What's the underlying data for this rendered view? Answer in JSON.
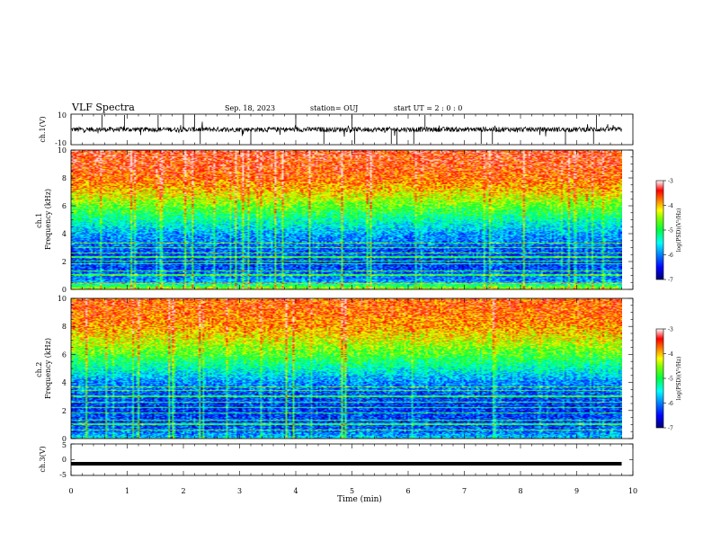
{
  "header": {
    "title": "VLF Spectra",
    "date": "Sep. 18, 2023",
    "station": "station= OUJ",
    "start_ut": "start  UT =   2 : 0  : 0"
  },
  "chart_data": [
    {
      "type": "line",
      "title": "VLF Spectra",
      "ylabel": "ch.1(V)",
      "ylim": [
        -10,
        10
      ],
      "yticks": [
        10,
        -10
      ],
      "x": [
        0,
        9.8
      ],
      "series_description": "broadband noise waveform near 0 V with sporadic spikes",
      "spike_times_min": [
        0.55,
        0.95,
        1.55,
        2.0,
        2.2,
        2.3,
        3.2,
        4.0,
        4.5,
        5.0,
        5.05,
        5.7,
        5.8,
        6.1,
        6.3,
        7.3,
        7.5,
        8.8,
        9.3,
        9.35
      ]
    },
    {
      "type": "heatmap",
      "ylabel": "ch.1\nFrequency  (kHz)",
      "xlim": [
        0,
        10
      ],
      "ylim": [
        0,
        10
      ],
      "yticks": [
        0,
        2,
        4,
        6,
        8,
        10
      ],
      "data_x_range": [
        0,
        9.8
      ],
      "colorbar": {
        "label": "log(PSD)(V²/Hz)",
        "ticks": [
          -3,
          -4,
          -5,
          -6,
          -7
        ],
        "range": [
          -7,
          -3
        ]
      },
      "mean_log_psd_profile": {
        "freq_khz": [
          0,
          0.5,
          1,
          2,
          3,
          4,
          5,
          6,
          7,
          8,
          9,
          10
        ],
        "log_psd": [
          -4.5,
          -6.0,
          -6.3,
          -6.5,
          -6.3,
          -6.0,
          -5.4,
          -4.8,
          -4.2,
          -3.8,
          -3.6,
          -3.5
        ]
      },
      "narrowband_lines_khz": [
        0.4,
        1.0,
        1.3,
        1.8,
        2.0,
        2.3,
        2.6,
        3.0,
        3.3
      ]
    },
    {
      "type": "heatmap",
      "ylabel": "ch.2\nFrequency  (kHz)",
      "xlim": [
        0,
        10
      ],
      "ylim": [
        0,
        10
      ],
      "yticks": [
        0,
        2,
        4,
        6,
        8,
        10
      ],
      "data_x_range": [
        0,
        9.8
      ],
      "colorbar": {
        "label": "log(PSD)(V²/Hz)",
        "ticks": [
          -3,
          -4,
          -5,
          -6,
          -7
        ],
        "range": [
          -7,
          -3
        ]
      },
      "mean_log_psd_profile": {
        "freq_khz": [
          0,
          0.5,
          1,
          2,
          3,
          4,
          5,
          6,
          7,
          8,
          9,
          10
        ],
        "log_psd": [
          -5.8,
          -6.3,
          -6.4,
          -6.5,
          -6.4,
          -6.1,
          -5.5,
          -4.9,
          -4.4,
          -4.0,
          -3.8,
          -3.7
        ]
      },
      "narrowband_lines_khz": [
        0.6,
        1.0,
        1.3,
        1.8,
        2.2,
        2.6,
        3.0,
        3.4,
        3.7
      ]
    },
    {
      "type": "line",
      "ylabel": "ch.3(V)",
      "ylim": [
        -5,
        5
      ],
      "yticks": [
        5,
        0,
        -5
      ],
      "xlabel": "Time  (min)",
      "xlim": [
        0,
        10
      ],
      "xticks": [
        0,
        1,
        2,
        3,
        4,
        5,
        6,
        7,
        8,
        9,
        10
      ],
      "x": [
        0,
        9.8
      ],
      "values": [
        -1.3,
        -1.3
      ]
    }
  ],
  "colors": {
    "colormap": [
      "#000090",
      "#0000ff",
      "#0090ff",
      "#00ffff",
      "#00ff90",
      "#00ff00",
      "#90ff00",
      "#ffff00",
      "#ff9000",
      "#ff0000",
      "#ffffff"
    ]
  }
}
